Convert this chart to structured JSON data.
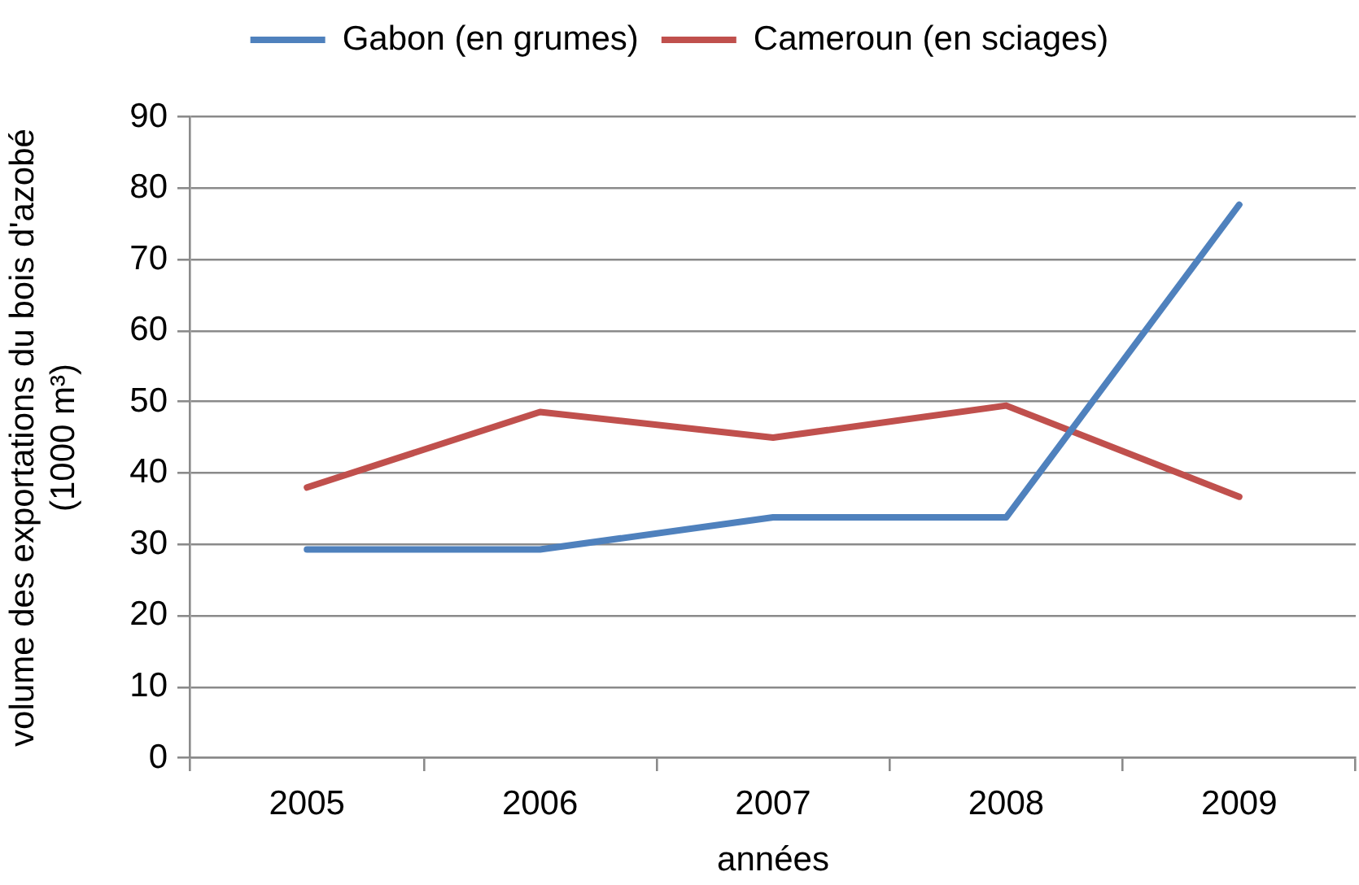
{
  "chart_data": {
    "type": "line",
    "categories": [
      "2005",
      "2006",
      "2007",
      "2008",
      "2009"
    ],
    "series": [
      {
        "name": "Gabon (en grumes)",
        "color": "#4f81bd",
        "values": [
          29.3,
          29.3,
          33.8,
          33.8,
          77.7
        ]
      },
      {
        "name": "Cameroun (en sciages)",
        "color": "#c0504d",
        "values": [
          38,
          48.6,
          45,
          49.5,
          36.7
        ]
      }
    ],
    "xlabel": "années",
    "ylabel": "volume des exportations du bois d'azobé (1000 m³)",
    "ylim": [
      0,
      90
    ],
    "yticks": [
      0,
      10,
      20,
      30,
      40,
      50,
      60,
      70,
      80,
      90
    ],
    "grid": "y",
    "legend": "top",
    "marker": "none",
    "line_style": "solid"
  }
}
